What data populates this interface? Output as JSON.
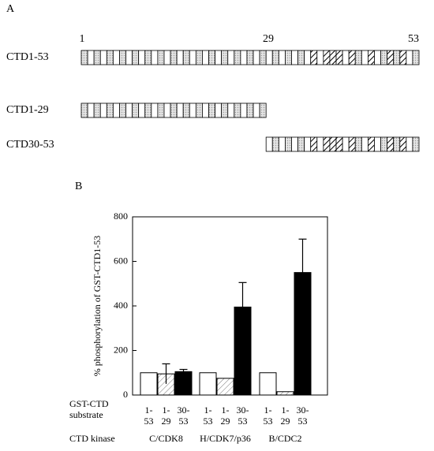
{
  "diagram": {
    "label": "A",
    "scale_labels": [
      "1",
      "29",
      "53"
    ],
    "rows": [
      "CTD1-53",
      "CTD1-29",
      "CTD30-53"
    ]
  },
  "chart_data": {
    "type": "bar",
    "panel_label": "B",
    "y_label": "% phosphorylation of GST-CTD1-53",
    "x_label": [
      "GST-CTD",
      "substrate"
    ],
    "group_label": "CTD kinase",
    "categories": [
      "C/CDK8",
      "H/CDK7/p36",
      "B/CDC2"
    ],
    "series": [
      {
        "label_lines": [
          "1-",
          "53"
        ],
        "color": "#ffffff",
        "values": [
          100,
          100,
          100
        ],
        "errors": [
          null,
          null,
          null
        ]
      },
      {
        "label_lines": [
          "1-",
          "29"
        ],
        "color": "hatched",
        "values": [
          95,
          75,
          15
        ],
        "errors": [
          45,
          null,
          null
        ]
      },
      {
        "label_lines": [
          "30-",
          "53"
        ],
        "color": "#000000",
        "values": [
          105,
          395,
          550
        ],
        "errors": [
          10,
          110,
          150
        ]
      }
    ],
    "ylim": [
      0,
      800
    ],
    "yticks": [
      0,
      200,
      400,
      600,
      800
    ]
  }
}
